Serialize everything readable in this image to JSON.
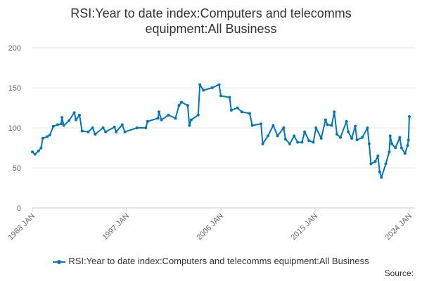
{
  "chart_data": {
    "type": "line",
    "title": "RSI:Year to date index:Computers and telecomms equipment:All Business",
    "title_lines": [
      "RSI:Year to date index:Computers and telecomms",
      "equipment:All Business"
    ],
    "xlabel": "",
    "ylabel": "",
    "ylim": [
      0,
      200
    ],
    "yticks": [
      "0",
      "50",
      "100",
      "150",
      "200"
    ],
    "xticks": [
      "1988 JAN",
      "1997 JAN",
      "2006 JAN",
      "2015 JAN",
      "2024 JAN"
    ],
    "xlim": [
      "1988-01",
      "2024-01"
    ],
    "grid": "horizontal",
    "legend": "bottom",
    "color": "#0077bb",
    "series": [
      {
        "name": "RSI:Year to date index:Computers and telecomms equipment:All Business",
        "points": [
          [
            "1988-01",
            70
          ],
          [
            "1988-04",
            67
          ],
          [
            "1988-08",
            71
          ],
          [
            "1988-11",
            75
          ],
          [
            "1989-01",
            87
          ],
          [
            "1989-06",
            89
          ],
          [
            "1989-09",
            91
          ],
          [
            "1990-01",
            102
          ],
          [
            "1990-06",
            104
          ],
          [
            "1990-10",
            105
          ],
          [
            "1990-11",
            113
          ],
          [
            "1991-01",
            103
          ],
          [
            "1991-07",
            109
          ],
          [
            "1992-01",
            119
          ],
          [
            "1992-03",
            110
          ],
          [
            "1992-07",
            116
          ],
          [
            "1992-10",
            96
          ],
          [
            "1993-05",
            95
          ],
          [
            "1993-10",
            100
          ],
          [
            "1994-01",
            92
          ],
          [
            "1994-10",
            100
          ],
          [
            "1995-01",
            95
          ],
          [
            "1995-11",
            101
          ],
          [
            "1996-01",
            95
          ],
          [
            "1996-08",
            104
          ],
          [
            "1996-11",
            95
          ],
          [
            "1998-01",
            100
          ],
          [
            "1998-11",
            100
          ],
          [
            "1999-01",
            108
          ],
          [
            "2000-01",
            112
          ],
          [
            "2000-02",
            120
          ],
          [
            "2000-05",
            110
          ],
          [
            "2001-01",
            116
          ],
          [
            "2001-09",
            112
          ],
          [
            "2002-01",
            128
          ],
          [
            "2002-04",
            132
          ],
          [
            "2002-11",
            128
          ],
          [
            "2003-01",
            103
          ],
          [
            "2003-03",
            110
          ],
          [
            "2003-11",
            116
          ],
          [
            "2004-01",
            154
          ],
          [
            "2004-05",
            147
          ],
          [
            "2005-03",
            150
          ],
          [
            "2005-11",
            154
          ],
          [
            "2006-01",
            140
          ],
          [
            "2006-11",
            138
          ],
          [
            "2007-01",
            122
          ],
          [
            "2007-08",
            125
          ],
          [
            "2008-01",
            120
          ],
          [
            "2008-10",
            118
          ],
          [
            "2009-01",
            103
          ],
          [
            "2009-11",
            105
          ],
          [
            "2010-01",
            80
          ],
          [
            "2010-07",
            90
          ],
          [
            "2011-01",
            103
          ],
          [
            "2011-06",
            90
          ],
          [
            "2012-01",
            100
          ],
          [
            "2012-03",
            86
          ],
          [
            "2012-08",
            80
          ],
          [
            "2013-01",
            90
          ],
          [
            "2013-05",
            82
          ],
          [
            "2013-10",
            82
          ],
          [
            "2014-01",
            95
          ],
          [
            "2014-06",
            84
          ],
          [
            "2014-11",
            82
          ],
          [
            "2015-02",
            100
          ],
          [
            "2015-08",
            87
          ],
          [
            "2016-01",
            110
          ],
          [
            "2016-03",
            104
          ],
          [
            "2016-08",
            103
          ],
          [
            "2016-11",
            120
          ],
          [
            "2017-02",
            92
          ],
          [
            "2017-06",
            88
          ],
          [
            "2018-01",
            108
          ],
          [
            "2018-03",
            95
          ],
          [
            "2018-07",
            87
          ],
          [
            "2018-11",
            102
          ],
          [
            "2019-01",
            85
          ],
          [
            "2019-07",
            88
          ],
          [
            "2020-01",
            100
          ],
          [
            "2020-03",
            80
          ],
          [
            "2020-05",
            55
          ],
          [
            "2020-10",
            58
          ],
          [
            "2021-01",
            65
          ],
          [
            "2021-03",
            45
          ],
          [
            "2021-05",
            38
          ],
          [
            "2021-10",
            55
          ],
          [
            "2022-02",
            70
          ],
          [
            "2022-03",
            90
          ],
          [
            "2022-05",
            80
          ],
          [
            "2022-09",
            75
          ],
          [
            "2023-02",
            88
          ],
          [
            "2023-04",
            75
          ],
          [
            "2023-08",
            68
          ],
          [
            "2023-11",
            78
          ],
          [
            "2023-12",
            85
          ],
          [
            "2024-01",
            114
          ]
        ]
      }
    ]
  },
  "legend_label": "RSI:Year to date index:Computers and telecomms equipment:All Business",
  "source_label": "Source:"
}
